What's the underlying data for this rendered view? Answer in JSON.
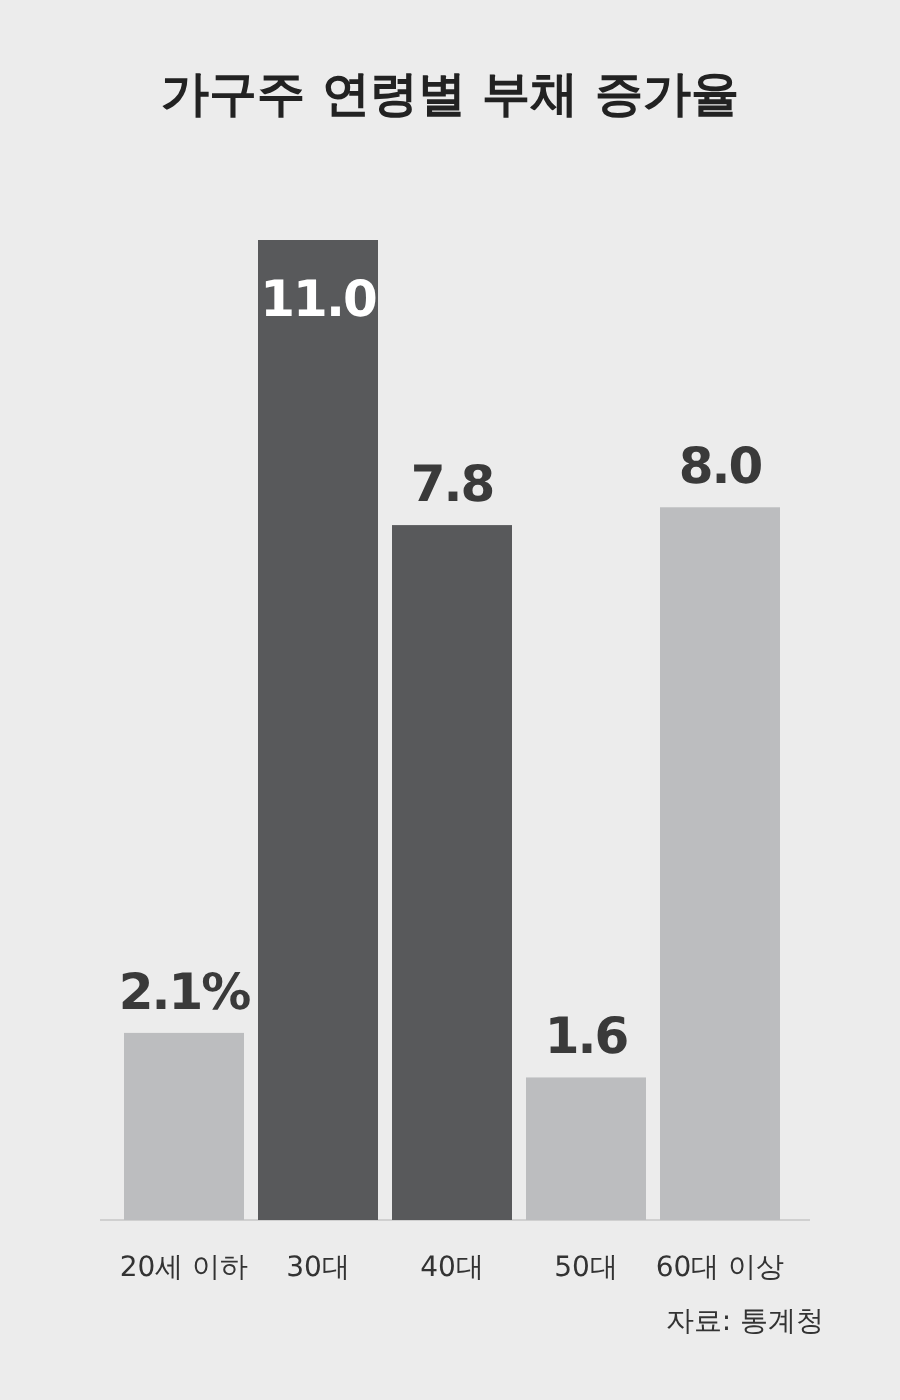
{
  "chart_data": {
    "type": "bar",
    "title": "가구주 연령별 부채 증가율",
    "categories": [
      "20세 이하",
      "30대",
      "40대",
      "50대",
      "60대 이상"
    ],
    "values": [
      2.1,
      11.0,
      7.8,
      1.6,
      8.0
    ],
    "colors": [
      "#bcbdbf",
      "#58595b",
      "#58595b",
      "#bcbdbf",
      "#bcbdbf"
    ],
    "value_labels": [
      "2.1%",
      "11.0",
      "7.8",
      "1.6",
      "8.0"
    ],
    "annotations": [
      "자료: 통계청"
    ]
  }
}
